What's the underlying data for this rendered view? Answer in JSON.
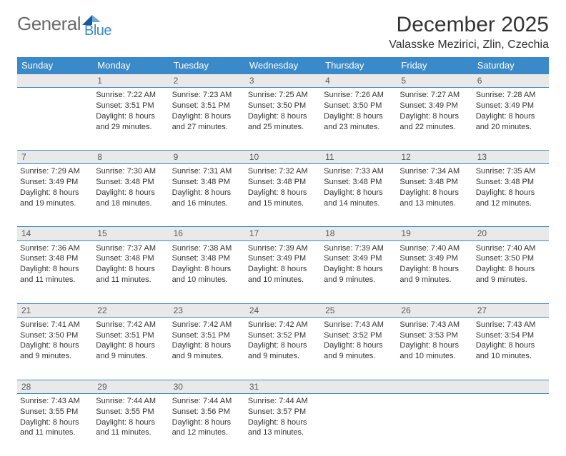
{
  "brand": {
    "part1": "General",
    "part2": "Blue"
  },
  "title": "December 2025",
  "location": "Valasske Mezirici, Zlin, Czechia",
  "colors": {
    "header_bg": "#3a8ac9",
    "header_text": "#ffffff",
    "daynum_bg": "#e9e9e9",
    "daynum_text": "#5a5a5a",
    "rule": "#3a8ac9",
    "body_text": "#333333",
    "logo_gray": "#6a6a6a",
    "logo_blue": "#3a8ac9"
  },
  "weekdays": [
    "Sunday",
    "Monday",
    "Tuesday",
    "Wednesday",
    "Thursday",
    "Friday",
    "Saturday"
  ],
  "weeks": [
    {
      "nums": [
        "",
        "1",
        "2",
        "3",
        "4",
        "5",
        "6"
      ],
      "cells": [
        null,
        {
          "sunrise": "Sunrise: 7:22 AM",
          "sunset": "Sunset: 3:51 PM",
          "day1": "Daylight: 8 hours",
          "day2": "and 29 minutes."
        },
        {
          "sunrise": "Sunrise: 7:23 AM",
          "sunset": "Sunset: 3:51 PM",
          "day1": "Daylight: 8 hours",
          "day2": "and 27 minutes."
        },
        {
          "sunrise": "Sunrise: 7:25 AM",
          "sunset": "Sunset: 3:50 PM",
          "day1": "Daylight: 8 hours",
          "day2": "and 25 minutes."
        },
        {
          "sunrise": "Sunrise: 7:26 AM",
          "sunset": "Sunset: 3:50 PM",
          "day1": "Daylight: 8 hours",
          "day2": "and 23 minutes."
        },
        {
          "sunrise": "Sunrise: 7:27 AM",
          "sunset": "Sunset: 3:49 PM",
          "day1": "Daylight: 8 hours",
          "day2": "and 22 minutes."
        },
        {
          "sunrise": "Sunrise: 7:28 AM",
          "sunset": "Sunset: 3:49 PM",
          "day1": "Daylight: 8 hours",
          "day2": "and 20 minutes."
        }
      ]
    },
    {
      "nums": [
        "7",
        "8",
        "9",
        "10",
        "11",
        "12",
        "13"
      ],
      "cells": [
        {
          "sunrise": "Sunrise: 7:29 AM",
          "sunset": "Sunset: 3:49 PM",
          "day1": "Daylight: 8 hours",
          "day2": "and 19 minutes."
        },
        {
          "sunrise": "Sunrise: 7:30 AM",
          "sunset": "Sunset: 3:48 PM",
          "day1": "Daylight: 8 hours",
          "day2": "and 18 minutes."
        },
        {
          "sunrise": "Sunrise: 7:31 AM",
          "sunset": "Sunset: 3:48 PM",
          "day1": "Daylight: 8 hours",
          "day2": "and 16 minutes."
        },
        {
          "sunrise": "Sunrise: 7:32 AM",
          "sunset": "Sunset: 3:48 PM",
          "day1": "Daylight: 8 hours",
          "day2": "and 15 minutes."
        },
        {
          "sunrise": "Sunrise: 7:33 AM",
          "sunset": "Sunset: 3:48 PM",
          "day1": "Daylight: 8 hours",
          "day2": "and 14 minutes."
        },
        {
          "sunrise": "Sunrise: 7:34 AM",
          "sunset": "Sunset: 3:48 PM",
          "day1": "Daylight: 8 hours",
          "day2": "and 13 minutes."
        },
        {
          "sunrise": "Sunrise: 7:35 AM",
          "sunset": "Sunset: 3:48 PM",
          "day1": "Daylight: 8 hours",
          "day2": "and 12 minutes."
        }
      ]
    },
    {
      "nums": [
        "14",
        "15",
        "16",
        "17",
        "18",
        "19",
        "20"
      ],
      "cells": [
        {
          "sunrise": "Sunrise: 7:36 AM",
          "sunset": "Sunset: 3:48 PM",
          "day1": "Daylight: 8 hours",
          "day2": "and 11 minutes."
        },
        {
          "sunrise": "Sunrise: 7:37 AM",
          "sunset": "Sunset: 3:48 PM",
          "day1": "Daylight: 8 hours",
          "day2": "and 11 minutes."
        },
        {
          "sunrise": "Sunrise: 7:38 AM",
          "sunset": "Sunset: 3:48 PM",
          "day1": "Daylight: 8 hours",
          "day2": "and 10 minutes."
        },
        {
          "sunrise": "Sunrise: 7:39 AM",
          "sunset": "Sunset: 3:49 PM",
          "day1": "Daylight: 8 hours",
          "day2": "and 10 minutes."
        },
        {
          "sunrise": "Sunrise: 7:39 AM",
          "sunset": "Sunset: 3:49 PM",
          "day1": "Daylight: 8 hours",
          "day2": "and 9 minutes."
        },
        {
          "sunrise": "Sunrise: 7:40 AM",
          "sunset": "Sunset: 3:49 PM",
          "day1": "Daylight: 8 hours",
          "day2": "and 9 minutes."
        },
        {
          "sunrise": "Sunrise: 7:40 AM",
          "sunset": "Sunset: 3:50 PM",
          "day1": "Daylight: 8 hours",
          "day2": "and 9 minutes."
        }
      ]
    },
    {
      "nums": [
        "21",
        "22",
        "23",
        "24",
        "25",
        "26",
        "27"
      ],
      "cells": [
        {
          "sunrise": "Sunrise: 7:41 AM",
          "sunset": "Sunset: 3:50 PM",
          "day1": "Daylight: 8 hours",
          "day2": "and 9 minutes."
        },
        {
          "sunrise": "Sunrise: 7:42 AM",
          "sunset": "Sunset: 3:51 PM",
          "day1": "Daylight: 8 hours",
          "day2": "and 9 minutes."
        },
        {
          "sunrise": "Sunrise: 7:42 AM",
          "sunset": "Sunset: 3:51 PM",
          "day1": "Daylight: 8 hours",
          "day2": "and 9 minutes."
        },
        {
          "sunrise": "Sunrise: 7:42 AM",
          "sunset": "Sunset: 3:52 PM",
          "day1": "Daylight: 8 hours",
          "day2": "and 9 minutes."
        },
        {
          "sunrise": "Sunrise: 7:43 AM",
          "sunset": "Sunset: 3:52 PM",
          "day1": "Daylight: 8 hours",
          "day2": "and 9 minutes."
        },
        {
          "sunrise": "Sunrise: 7:43 AM",
          "sunset": "Sunset: 3:53 PM",
          "day1": "Daylight: 8 hours",
          "day2": "and 10 minutes."
        },
        {
          "sunrise": "Sunrise: 7:43 AM",
          "sunset": "Sunset: 3:54 PM",
          "day1": "Daylight: 8 hours",
          "day2": "and 10 minutes."
        }
      ]
    },
    {
      "nums": [
        "28",
        "29",
        "30",
        "31",
        "",
        "",
        ""
      ],
      "cells": [
        {
          "sunrise": "Sunrise: 7:43 AM",
          "sunset": "Sunset: 3:55 PM",
          "day1": "Daylight: 8 hours",
          "day2": "and 11 minutes."
        },
        {
          "sunrise": "Sunrise: 7:44 AM",
          "sunset": "Sunset: 3:55 PM",
          "day1": "Daylight: 8 hours",
          "day2": "and 11 minutes."
        },
        {
          "sunrise": "Sunrise: 7:44 AM",
          "sunset": "Sunset: 3:56 PM",
          "day1": "Daylight: 8 hours",
          "day2": "and 12 minutes."
        },
        {
          "sunrise": "Sunrise: 7:44 AM",
          "sunset": "Sunset: 3:57 PM",
          "day1": "Daylight: 8 hours",
          "day2": "and 13 minutes."
        },
        null,
        null,
        null
      ]
    }
  ]
}
